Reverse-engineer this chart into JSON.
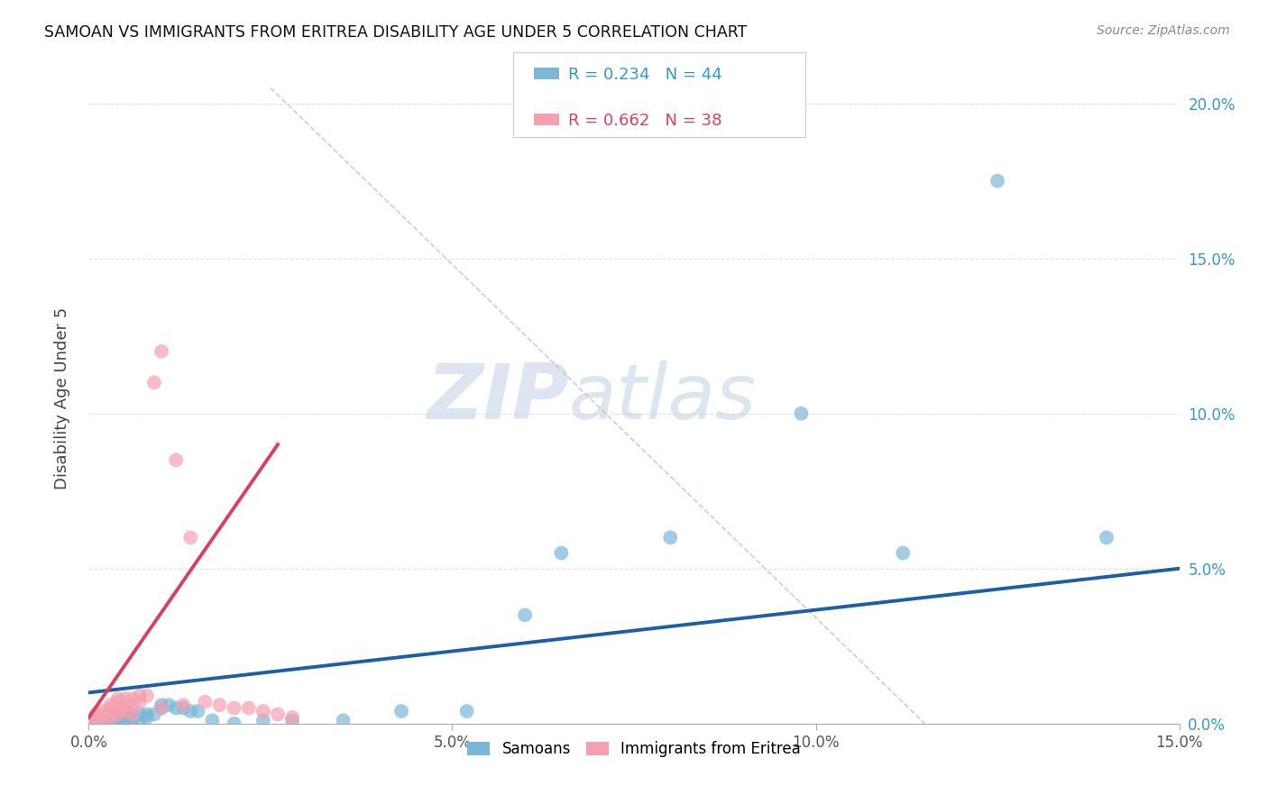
{
  "title": "SAMOAN VS IMMIGRANTS FROM ERITREA DISABILITY AGE UNDER 5 CORRELATION CHART",
  "source": "Source: ZipAtlas.com",
  "ylabel": "Disability Age Under 5",
  "xlim": [
    0.0,
    0.15
  ],
  "ylim": [
    0.0,
    0.21
  ],
  "xticks": [
    0.0,
    0.05,
    0.1,
    0.15
  ],
  "xticklabels": [
    "0.0%",
    "5.0%",
    "10.0%",
    "15.0%"
  ],
  "yticks": [
    0.0,
    0.05,
    0.1,
    0.15,
    0.2
  ],
  "yticklabels_right": [
    "0.0%",
    "5.0%",
    "10.0%",
    "15.0%",
    "20.0%"
  ],
  "watermark_zip": "ZIP",
  "watermark_atlas": "atlas",
  "blue_scatter_color": "#7ab8d9",
  "pink_scatter_color": "#f4a0b0",
  "blue_line_color": "#1a5fa8",
  "pink_line_color": "#d94060",
  "diag_line_color": "#ddbbbb",
  "grid_color": "#dddddd",
  "background_color": "#ffffff",
  "right_tick_color": "#3399cc",
  "blue_label_color": "#3399cc",
  "pink_label_color": "#d94060",
  "blue_x": [
    0.001,
    0.001,
    0.001,
    0.002,
    0.002,
    0.002,
    0.003,
    0.003,
    0.003,
    0.003,
    0.004,
    0.004,
    0.004,
    0.005,
    0.005,
    0.006,
    0.006,
    0.006,
    0.007,
    0.007,
    0.008,
    0.008,
    0.009,
    0.01,
    0.01,
    0.011,
    0.012,
    0.013,
    0.014,
    0.015,
    0.017,
    0.02,
    0.024,
    0.028,
    0.035,
    0.043,
    0.052,
    0.06,
    0.065,
    0.08,
    0.098,
    0.112,
    0.125,
    0.14
  ],
  "blue_y": [
    0.0,
    0.001,
    0.002,
    0.0,
    0.001,
    0.001,
    0.0,
    0.001,
    0.001,
    0.002,
    0.0,
    0.001,
    0.002,
    0.001,
    0.002,
    0.001,
    0.002,
    0.003,
    0.001,
    0.003,
    0.002,
    0.003,
    0.003,
    0.005,
    0.006,
    0.006,
    0.005,
    0.005,
    0.004,
    0.004,
    0.001,
    0.0,
    0.001,
    0.001,
    0.001,
    0.004,
    0.004,
    0.035,
    0.055,
    0.06,
    0.1,
    0.055,
    0.175,
    0.06
  ],
  "pink_x": [
    0.001,
    0.001,
    0.001,
    0.001,
    0.002,
    0.002,
    0.002,
    0.002,
    0.003,
    0.003,
    0.003,
    0.003,
    0.004,
    0.004,
    0.004,
    0.004,
    0.005,
    0.005,
    0.005,
    0.006,
    0.006,
    0.006,
    0.007,
    0.007,
    0.008,
    0.009,
    0.01,
    0.01,
    0.012,
    0.013,
    0.014,
    0.016,
    0.018,
    0.02,
    0.022,
    0.024,
    0.026,
    0.028
  ],
  "pink_y": [
    0.0,
    0.001,
    0.002,
    0.003,
    0.001,
    0.002,
    0.003,
    0.004,
    0.002,
    0.003,
    0.005,
    0.006,
    0.003,
    0.005,
    0.007,
    0.008,
    0.004,
    0.006,
    0.008,
    0.003,
    0.006,
    0.008,
    0.007,
    0.009,
    0.009,
    0.11,
    0.005,
    0.12,
    0.085,
    0.006,
    0.06,
    0.007,
    0.006,
    0.005,
    0.005,
    0.004,
    0.003,
    0.002
  ],
  "blue_line_x": [
    0.0,
    0.15
  ],
  "blue_line_y": [
    0.01,
    0.05
  ],
  "pink_line_x": [
    0.0,
    0.026
  ],
  "pink_line_y": [
    0.002,
    0.09
  ],
  "diag_line_x": [
    0.025,
    0.115
  ],
  "diag_line_y": [
    0.205,
    0.0
  ]
}
